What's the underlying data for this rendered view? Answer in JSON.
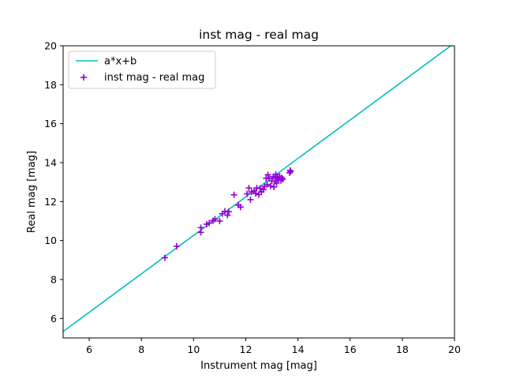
{
  "chart_data": {
    "type": "scatter",
    "title": "inst mag - real mag",
    "xlabel": "Instrument mag [mag]",
    "ylabel": "Real mag [mag]",
    "xlim": [
      5,
      20
    ],
    "ylim": [
      5,
      20
    ],
    "xticks": [
      6,
      8,
      10,
      12,
      14,
      16,
      18,
      20
    ],
    "yticks": [
      6,
      8,
      10,
      12,
      14,
      16,
      18,
      20
    ],
    "grid": false,
    "legend_position": "upper-left",
    "fit_line": {
      "name": "a*x+b",
      "color": "#00bfbf",
      "x": [
        5,
        20
      ],
      "y": [
        5.33,
        20.14
      ]
    },
    "series": [
      {
        "name": "inst mag - real mag",
        "marker": "plus",
        "color": "#9400d3",
        "points": [
          [
            8.9,
            9.12
          ],
          [
            9.35,
            9.71
          ],
          [
            10.28,
            10.42
          ],
          [
            10.28,
            10.66
          ],
          [
            10.5,
            10.84
          ],
          [
            10.6,
            10.9
          ],
          [
            10.75,
            11.02
          ],
          [
            10.82,
            11.1
          ],
          [
            11.0,
            11.0
          ],
          [
            11.1,
            11.38
          ],
          [
            11.2,
            11.5
          ],
          [
            11.3,
            11.3
          ],
          [
            11.35,
            11.48
          ],
          [
            11.55,
            12.35
          ],
          [
            11.72,
            11.82
          ],
          [
            11.8,
            11.72
          ],
          [
            12.05,
            12.4
          ],
          [
            12.12,
            12.7
          ],
          [
            12.18,
            12.1
          ],
          [
            12.22,
            12.5
          ],
          [
            12.32,
            12.55
          ],
          [
            12.38,
            12.42
          ],
          [
            12.42,
            12.7
          ],
          [
            12.5,
            12.36
          ],
          [
            12.55,
            12.68
          ],
          [
            12.6,
            12.5
          ],
          [
            12.68,
            12.62
          ],
          [
            12.72,
            12.78
          ],
          [
            12.78,
            13.2
          ],
          [
            12.82,
            12.88
          ],
          [
            12.85,
            13.38
          ],
          [
            12.9,
            13.18
          ],
          [
            12.95,
            12.8
          ],
          [
            13.0,
            13.06
          ],
          [
            13.05,
            13.28
          ],
          [
            13.08,
            12.75
          ],
          [
            13.12,
            13.05
          ],
          [
            13.15,
            13.4
          ],
          [
            13.18,
            12.95
          ],
          [
            13.2,
            13.22
          ],
          [
            13.25,
            13.15
          ],
          [
            13.3,
            13.3
          ],
          [
            13.35,
            13.08
          ],
          [
            13.38,
            13.22
          ],
          [
            13.42,
            13.15
          ],
          [
            13.68,
            13.48
          ],
          [
            13.7,
            13.6
          ],
          [
            13.72,
            13.55
          ]
        ]
      }
    ]
  }
}
